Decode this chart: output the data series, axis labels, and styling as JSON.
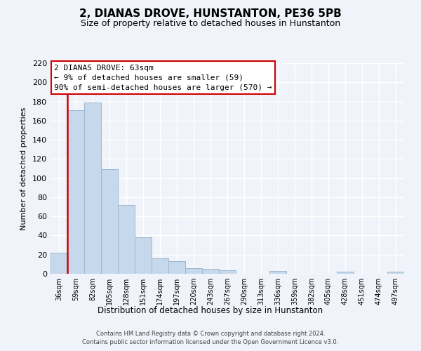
{
  "title": "2, DIANAS DROVE, HUNSTANTON, PE36 5PB",
  "subtitle": "Size of property relative to detached houses in Hunstanton",
  "xlabel": "Distribution of detached houses by size in Hunstanton",
  "ylabel": "Number of detached properties",
  "bin_labels": [
    "36sqm",
    "59sqm",
    "82sqm",
    "105sqm",
    "128sqm",
    "151sqm",
    "174sqm",
    "197sqm",
    "220sqm",
    "243sqm",
    "267sqm",
    "290sqm",
    "313sqm",
    "336sqm",
    "359sqm",
    "382sqm",
    "405sqm",
    "428sqm",
    "451sqm",
    "474sqm",
    "497sqm"
  ],
  "bar_values": [
    22,
    171,
    179,
    109,
    72,
    38,
    16,
    13,
    6,
    5,
    4,
    0,
    0,
    3,
    0,
    0,
    0,
    2,
    0,
    0,
    2
  ],
  "bar_color": "#c6d9ec",
  "bar_edge_color": "#9ab8d0",
  "vline_color": "#cc0000",
  "ylim": [
    0,
    220
  ],
  "yticks": [
    0,
    20,
    40,
    60,
    80,
    100,
    120,
    140,
    160,
    180,
    200,
    220
  ],
  "annotation_title": "2 DIANAS DROVE: 63sqm",
  "annotation_line1": "← 9% of detached houses are smaller (59)",
  "annotation_line2": "90% of semi-detached houses are larger (570) →",
  "annotation_box_color": "#ffffff",
  "annotation_box_edge": "#cc0000",
  "footer1": "Contains HM Land Registry data © Crown copyright and database right 2024.",
  "footer2": "Contains public sector information licensed under the Open Government Licence v3.0.",
  "background_color": "#f0f4fa",
  "grid_color": "#ffffff",
  "plot_bg_color": "#f0f4fa"
}
